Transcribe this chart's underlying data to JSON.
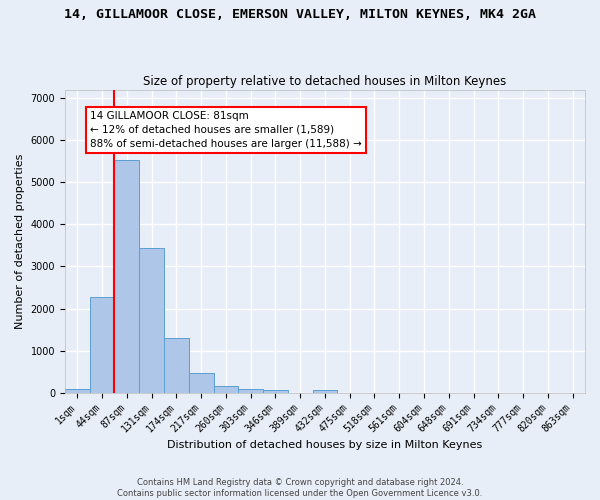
{
  "title": "14, GILLAMOOR CLOSE, EMERSON VALLEY, MILTON KEYNES, MK4 2GA",
  "subtitle": "Size of property relative to detached houses in Milton Keynes",
  "xlabel": "Distribution of detached houses by size in Milton Keynes",
  "ylabel": "Number of detached properties",
  "footer_line1": "Contains HM Land Registry data © Crown copyright and database right 2024.",
  "footer_line2": "Contains public sector information licensed under the Open Government Licence v3.0.",
  "bin_labels": [
    "1sqm",
    "44sqm",
    "87sqm",
    "131sqm",
    "174sqm",
    "217sqm",
    "260sqm",
    "303sqm",
    "346sqm",
    "389sqm",
    "432sqm",
    "475sqm",
    "518sqm",
    "561sqm",
    "604sqm",
    "648sqm",
    "691sqm",
    "734sqm",
    "777sqm",
    "820sqm",
    "863sqm"
  ],
  "bar_heights": [
    80,
    2270,
    5520,
    3430,
    1300,
    470,
    160,
    80,
    75,
    0,
    70,
    0,
    0,
    0,
    0,
    0,
    0,
    0,
    0,
    0,
    0
  ],
  "bar_color": "#aec6e8",
  "bar_edge_color": "#5a9fd4",
  "property_line_color": "red",
  "annotation_text": "14 GILLAMOOR CLOSE: 81sqm\n← 12% of detached houses are smaller (1,589)\n88% of semi-detached houses are larger (11,588) →",
  "annotation_box_color": "white",
  "annotation_box_edge_color": "red",
  "ylim": [
    0,
    7200
  ],
  "yticks": [
    0,
    1000,
    2000,
    3000,
    4000,
    5000,
    6000,
    7000
  ],
  "bg_color": "#e8eef8",
  "grid_color": "white",
  "title_fontsize": 9.5,
  "subtitle_fontsize": 8.5,
  "xlabel_fontsize": 8,
  "ylabel_fontsize": 8,
  "tick_fontsize": 7,
  "annotation_fontsize": 7.5,
  "footer_fontsize": 6
}
